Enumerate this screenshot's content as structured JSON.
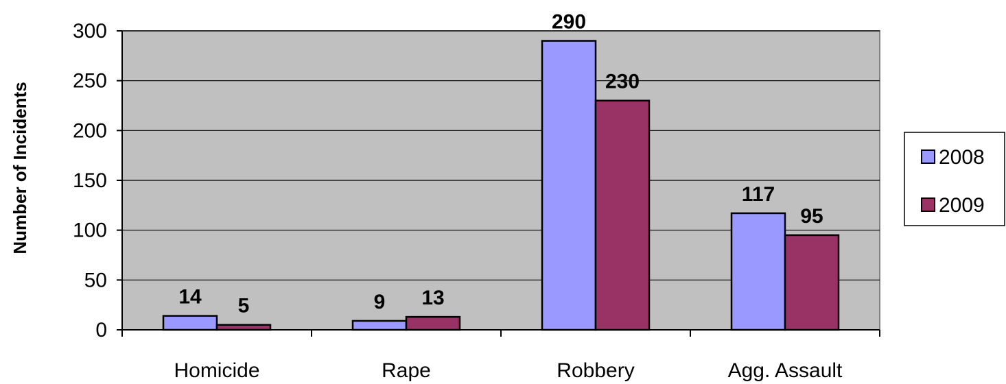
{
  "chart_data": {
    "type": "bar",
    "title": "",
    "xlabel": "",
    "ylabel": "Number of Incidents",
    "categories": [
      "Homicide",
      "Rape",
      "Robbery",
      "Agg. Assault"
    ],
    "series": [
      {
        "name": "2008",
        "values": [
          14,
          9,
          290,
          117
        ],
        "color": "#9999FF"
      },
      {
        "name": "2009",
        "values": [
          5,
          13,
          230,
          95
        ],
        "color": "#993366"
      }
    ],
    "ylim": [
      0,
      300
    ],
    "yticks": [
      0,
      50,
      100,
      150,
      200,
      250,
      300
    ],
    "grid": true,
    "plot_background": "#C0C0C0",
    "legend_position": "right"
  }
}
